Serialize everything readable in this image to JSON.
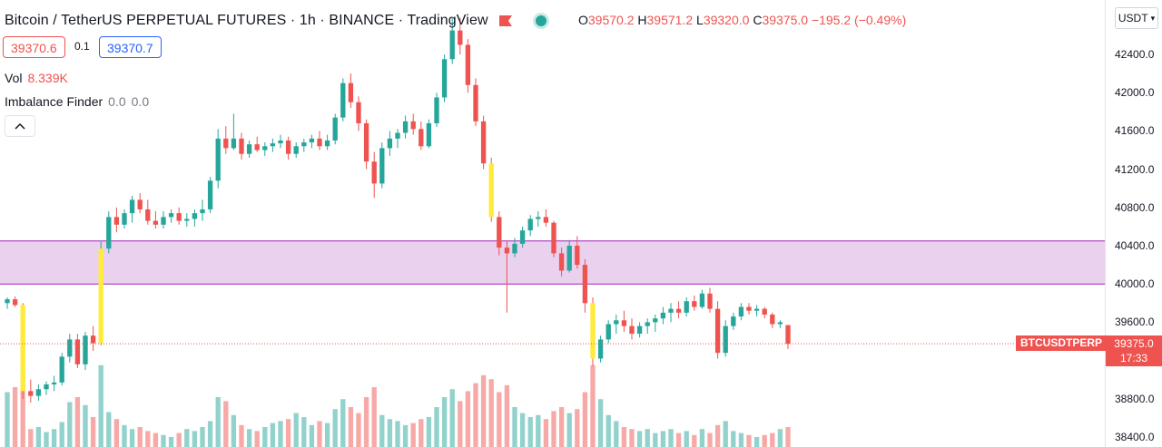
{
  "header": {
    "title": "Bitcoin / TetherUS PERPETUAL FUTURES · 1h · BINANCE · TradingView",
    "ohlc": {
      "o_label": "O",
      "o": "39570.2",
      "h_label": "H",
      "h": "39571.2",
      "l_label": "L",
      "l": "39320.0",
      "c_label": "C",
      "c": "39375.0",
      "change": "−195.2 (−0.49%)"
    }
  },
  "trade": {
    "sell": "39370.6",
    "spread": "0.1",
    "buy": "39370.7"
  },
  "indicators": [
    {
      "name": "Vol",
      "value": "8.339K"
    },
    {
      "name": "Imbalance Finder",
      "v1": "0.0",
      "v2": "0.0"
    }
  ],
  "axis": {
    "currency": "USDT",
    "ticks": [
      "42400.0",
      "42000.0",
      "41600.0",
      "41200.0",
      "40800.0",
      "40400.0",
      "40000.0",
      "39600.0",
      "38800.0",
      "38400.0"
    ]
  },
  "price_label": {
    "symbol": "BTCUSDTPERP",
    "price": "39375.0",
    "countdown": "17:33"
  },
  "colors": {
    "up": "#26a69a",
    "down": "#ef5350",
    "zone": "#e1bee7",
    "zone_border": "#9c27b0",
    "imbalance": "#ffeb3b"
  },
  "icons": {
    "flag": "flag-icon",
    "status": "status-dot-icon",
    "collapse": "chevron-up-icon",
    "currency": "chevron-down-icon"
  },
  "chart_data": {
    "type": "candlestick",
    "timeframe": "1h",
    "ylim": [
      38300,
      42800
    ],
    "zone": [
      40000,
      40450
    ],
    "last_price": 39375.0,
    "ohlc": [
      [
        39800,
        39860,
        39740,
        39840
      ],
      [
        39840,
        39870,
        39760,
        39780
      ],
      [
        39780,
        39800,
        38800,
        38880
      ],
      [
        38880,
        39000,
        38760,
        38830
      ],
      [
        38830,
        38950,
        38780,
        38900
      ],
      [
        38900,
        38980,
        38840,
        38950
      ],
      [
        38950,
        39040,
        38880,
        38970
      ],
      [
        38970,
        39280,
        38940,
        39240
      ],
      [
        39240,
        39480,
        39180,
        39420
      ],
      [
        39420,
        39480,
        39120,
        39160
      ],
      [
        39160,
        39500,
        39100,
        39460
      ],
      [
        39460,
        39560,
        39300,
        39380
      ],
      [
        39380,
        40440,
        39360,
        40370
      ],
      [
        40370,
        40760,
        40320,
        40700
      ],
      [
        40700,
        40800,
        40540,
        40620
      ],
      [
        40620,
        40780,
        40580,
        40740
      ],
      [
        40740,
        40920,
        40640,
        40880
      ],
      [
        40880,
        40950,
        40740,
        40780
      ],
      [
        40780,
        40880,
        40620,
        40660
      ],
      [
        40660,
        40760,
        40580,
        40620
      ],
      [
        40620,
        40760,
        40580,
        40700
      ],
      [
        40700,
        40780,
        40640,
        40740
      ],
      [
        40740,
        40800,
        40620,
        40660
      ],
      [
        40660,
        40740,
        40600,
        40680
      ],
      [
        40680,
        40780,
        40600,
        40740
      ],
      [
        40740,
        40880,
        40660,
        40780
      ],
      [
        40780,
        41120,
        40740,
        41080
      ],
      [
        41080,
        41620,
        41000,
        41520
      ],
      [
        41520,
        41650,
        41360,
        41420
      ],
      [
        41420,
        41780,
        41400,
        41520
      ],
      [
        41520,
        41580,
        41300,
        41360
      ],
      [
        41360,
        41500,
        41320,
        41460
      ],
      [
        41460,
        41540,
        41380,
        41400
      ],
      [
        41400,
        41480,
        41340,
        41440
      ],
      [
        41440,
        41520,
        41380,
        41470
      ],
      [
        41470,
        41560,
        41420,
        41500
      ],
      [
        41500,
        41540,
        41300,
        41360
      ],
      [
        41360,
        41480,
        41320,
        41440
      ],
      [
        41440,
        41520,
        41380,
        41480
      ],
      [
        41480,
        41560,
        41420,
        41520
      ],
      [
        41520,
        41600,
        41400,
        41440
      ],
      [
        41440,
        41560,
        41400,
        41500
      ],
      [
        41500,
        41780,
        41460,
        41740
      ],
      [
        41740,
        42150,
        41700,
        42100
      ],
      [
        42100,
        42200,
        41840,
        41900
      ],
      [
        41900,
        41960,
        41600,
        41680
      ],
      [
        41680,
        41720,
        41200,
        41280
      ],
      [
        41280,
        41380,
        40900,
        41050
      ],
      [
        41050,
        41480,
        41000,
        41420
      ],
      [
        41420,
        41600,
        41340,
        41520
      ],
      [
        41520,
        41620,
        41420,
        41580
      ],
      [
        41580,
        41760,
        41520,
        41700
      ],
      [
        41700,
        41780,
        41560,
        41620
      ],
      [
        41620,
        41700,
        41400,
        41440
      ],
      [
        41440,
        41720,
        41420,
        41680
      ],
      [
        41680,
        42000,
        41640,
        41950
      ],
      [
        41950,
        42400,
        41900,
        42350
      ],
      [
        42350,
        42780,
        42300,
        42650
      ],
      [
        42650,
        42780,
        42400,
        42500
      ],
      [
        42500,
        42560,
        42000,
        42080
      ],
      [
        42080,
        42150,
        41650,
        41700
      ],
      [
        41700,
        41760,
        41200,
        41260
      ],
      [
        41260,
        41320,
        40650,
        40700
      ],
      [
        40700,
        40760,
        40300,
        40380
      ],
      [
        40380,
        40450,
        39700,
        40320
      ],
      [
        40320,
        40480,
        40280,
        40420
      ],
      [
        40420,
        40600,
        40380,
        40560
      ],
      [
        40560,
        40720,
        40500,
        40680
      ],
      [
        40680,
        40760,
        40600,
        40700
      ],
      [
        40700,
        40780,
        40600,
        40640
      ],
      [
        40640,
        40660,
        40280,
        40320
      ],
      [
        40320,
        40380,
        40080,
        40140
      ],
      [
        40140,
        40460,
        40120,
        40400
      ],
      [
        40400,
        40500,
        40160,
        40200
      ],
      [
        40200,
        40260,
        39700,
        39800
      ],
      [
        39800,
        39860,
        39140,
        39220
      ],
      [
        39220,
        39460,
        39180,
        39420
      ],
      [
        39420,
        39620,
        39380,
        39580
      ],
      [
        39580,
        39680,
        39480,
        39620
      ],
      [
        39620,
        39720,
        39500,
        39560
      ],
      [
        39560,
        39640,
        39420,
        39480
      ],
      [
        39480,
        39600,
        39440,
        39560
      ],
      [
        39560,
        39640,
        39480,
        39600
      ],
      [
        39600,
        39680,
        39500,
        39640
      ],
      [
        39640,
        39760,
        39580,
        39700
      ],
      [
        39700,
        39800,
        39600,
        39740
      ],
      [
        39740,
        39820,
        39640,
        39700
      ],
      [
        39700,
        39860,
        39660,
        39820
      ],
      [
        39820,
        39880,
        39720,
        39760
      ],
      [
        39760,
        39940,
        39740,
        39900
      ],
      [
        39900,
        39960,
        39700,
        39740
      ],
      [
        39740,
        39820,
        39220,
        39280
      ],
      [
        39280,
        39620,
        39240,
        39560
      ],
      [
        39560,
        39700,
        39520,
        39660
      ],
      [
        39660,
        39800,
        39620,
        39760
      ],
      [
        39760,
        39800,
        39680,
        39720
      ],
      [
        39720,
        39780,
        39660,
        39740
      ],
      [
        39740,
        39760,
        39640,
        39680
      ],
      [
        39680,
        39700,
        39540,
        39580
      ],
      [
        39580,
        39620,
        39540,
        39600
      ],
      [
        39570.2,
        39571.2,
        39320.0,
        39375.0
      ]
    ],
    "volume": [
      0.55,
      0.6,
      0.72,
      0.18,
      0.2,
      0.15,
      0.18,
      0.25,
      0.45,
      0.5,
      0.42,
      0.3,
      0.82,
      0.35,
      0.28,
      0.22,
      0.18,
      0.2,
      0.16,
      0.14,
      0.12,
      0.1,
      0.14,
      0.18,
      0.16,
      0.2,
      0.26,
      0.5,
      0.46,
      0.32,
      0.22,
      0.18,
      0.16,
      0.2,
      0.24,
      0.26,
      0.28,
      0.34,
      0.3,
      0.22,
      0.26,
      0.24,
      0.38,
      0.48,
      0.4,
      0.34,
      0.5,
      0.6,
      0.32,
      0.28,
      0.26,
      0.22,
      0.24,
      0.28,
      0.3,
      0.4,
      0.5,
      0.58,
      0.46,
      0.56,
      0.64,
      0.72,
      0.68,
      0.55,
      0.62,
      0.4,
      0.34,
      0.3,
      0.32,
      0.28,
      0.36,
      0.4,
      0.34,
      0.38,
      0.55,
      0.82,
      0.48,
      0.32,
      0.26,
      0.2,
      0.18,
      0.16,
      0.18,
      0.14,
      0.16,
      0.18,
      0.14,
      0.16,
      0.12,
      0.18,
      0.14,
      0.22,
      0.26,
      0.16,
      0.14,
      0.12,
      0.1,
      0.12,
      0.14,
      0.18,
      0.2
    ]
  }
}
